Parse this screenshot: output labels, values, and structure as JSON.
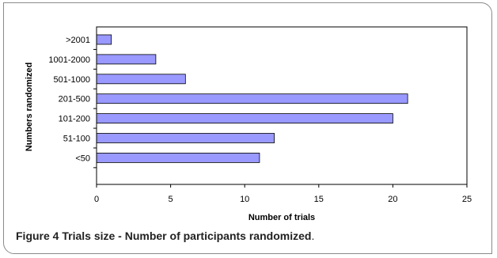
{
  "chart_data": {
    "type": "bar",
    "orientation": "horizontal",
    "categories": [
      ">2001",
      "1001-2000",
      "501-1000",
      "201-500",
      "101-200",
      "51-100",
      "<50"
    ],
    "values": [
      1,
      4,
      6,
      21,
      20,
      12,
      11
    ],
    "xlabel": "Number of trials",
    "ylabel": "Numbers randomized",
    "xlim": [
      0,
      25
    ],
    "xticks": [
      0,
      5,
      10,
      15,
      20,
      25
    ],
    "grid": false,
    "legend": "none",
    "bar_color": "#9999ff",
    "bar_edge_color": "#000000"
  },
  "caption": {
    "label": "Figure 4",
    "title": "Trials size - Number of participants randomized",
    "end": "."
  }
}
